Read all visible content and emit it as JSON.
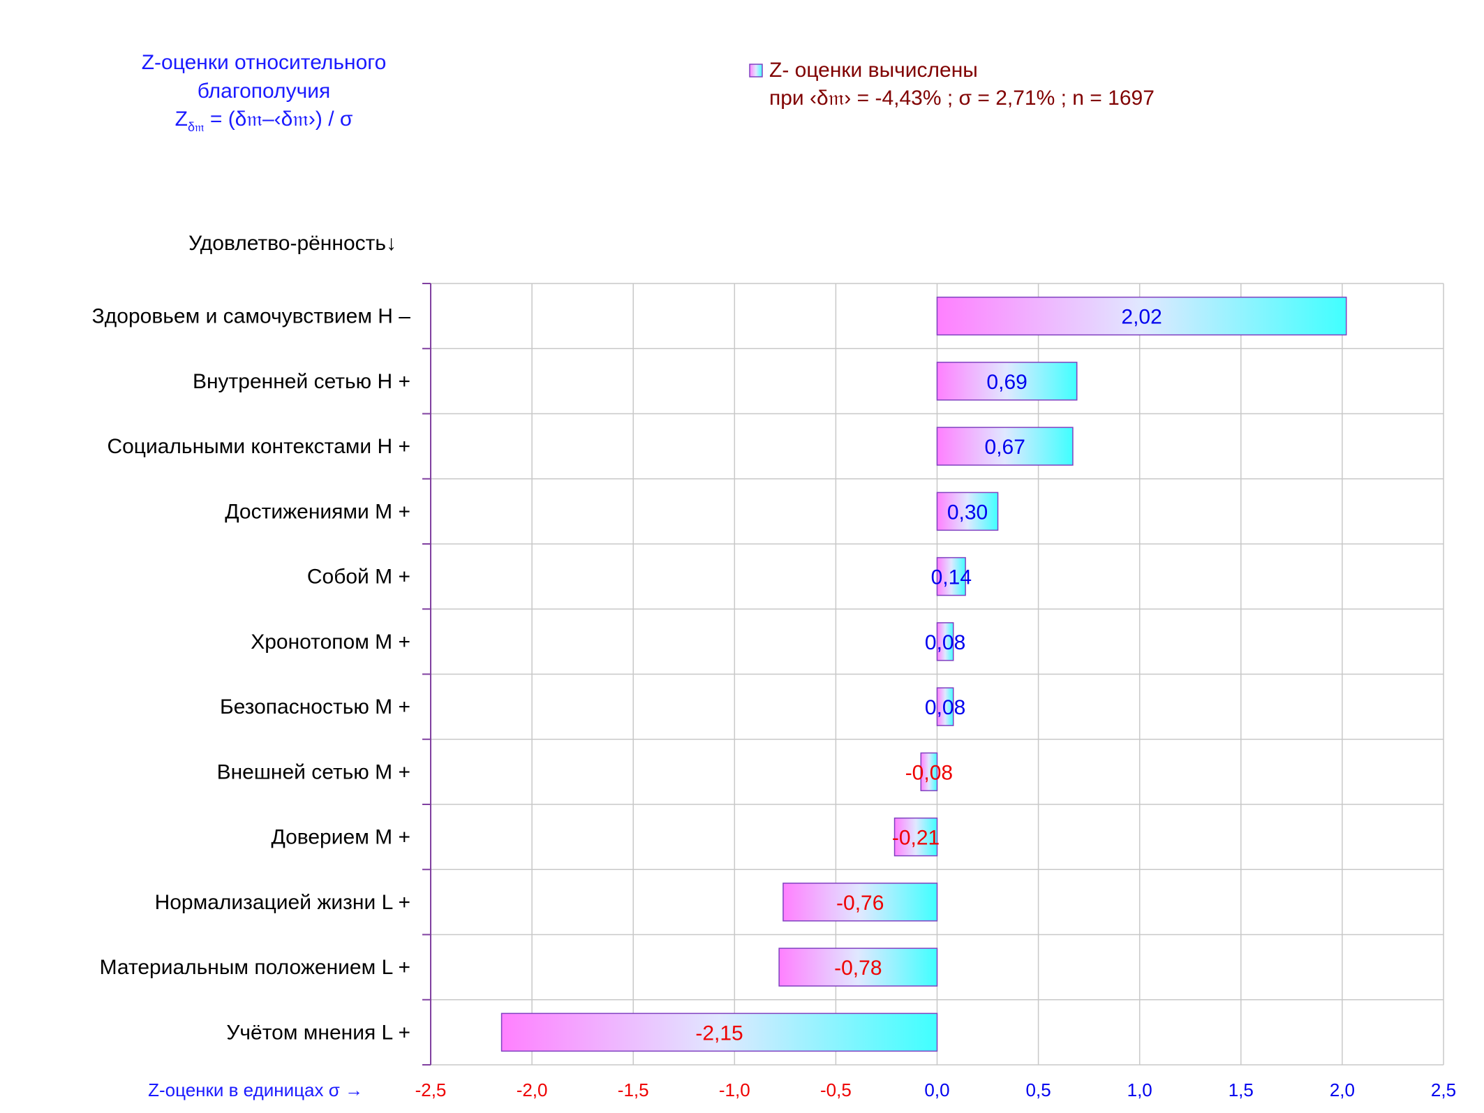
{
  "chart_data": {
    "type": "bar",
    "orientation": "horizontal",
    "title_lines": [
      "Z-оценки  относительного",
      "благополучия"
    ],
    "formula": {
      "z": "Z",
      "z_sub": "δ𝔪",
      "rest": " = (δ𝔪–‹δ𝔪›)  / σ"
    },
    "legend": {
      "position": "top-right",
      "line1": "Z- оценки вычислены",
      "line2": "при ‹δ𝔪› = -4,43% ; σ = 2,71% ; n = 1697"
    },
    "ylabel": "Удовлетво-рённость↓",
    "xlabel": "Z-оценки в единицах σ →",
    "categories": [
      "Здоровьем и самочувствием  H –",
      "Внутренней сетью  H +",
      "Социальными контекстами  H +",
      "Достижениями  M +",
      "Собой  M +",
      "Хронотопом  M +",
      "Безопасностью  M +",
      "Внешней сетью  M +",
      "Доверием  M +",
      "Нормализацией жизни  L +",
      "Материальным положением  L +",
      "Учётом мнения  L +"
    ],
    "values": [
      2.02,
      0.69,
      0.67,
      0.3,
      0.14,
      0.08,
      0.08,
      -0.08,
      -0.21,
      -0.76,
      -0.78,
      -2.15
    ],
    "value_labels": [
      "2,02",
      "0,69",
      "0,67",
      "0,30",
      "0,14",
      "0,08",
      "0,08",
      "-0,08",
      "-0,21",
      "-0,76",
      "-0,78",
      "-2,15"
    ],
    "xlim": [
      -2.5,
      2.5
    ],
    "xticks": [
      -2.5,
      -2.0,
      -1.5,
      -1.0,
      -0.5,
      0.0,
      0.5,
      1.0,
      1.5,
      2.0,
      2.5
    ],
    "xtick_labels": [
      "-2,5",
      "-2,0",
      "-1,5",
      "-1,0",
      "-0,5",
      "0,0",
      "0,5",
      "1,0",
      "1,5",
      "2,0",
      "2,5"
    ],
    "grid": true,
    "colors": {
      "title": "#1a1aff",
      "legend_text": "#800000",
      "positive_label": "#0000ee",
      "negative_label": "#ee0000",
      "bar_gradient_start": "#ff80ff",
      "bar_gradient_end": "#40ffff",
      "bar_border": "#8040c0",
      "axis_line": "#8040a0",
      "grid": "#c8c8c8",
      "category_text": "#000000"
    }
  }
}
